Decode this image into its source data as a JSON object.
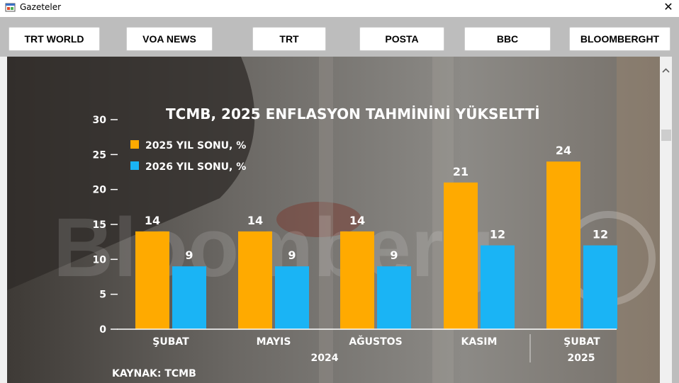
{
  "window": {
    "title": "Gazeteler",
    "close_glyph": "✕"
  },
  "toolbar": {
    "buttons": [
      {
        "label": "TRT WORLD"
      },
      {
        "label": "VOA NEWS"
      },
      {
        "label": "TRT"
      },
      {
        "label": "POSTA"
      },
      {
        "label": "BBC"
      },
      {
        "label": "BLOOMBERGHT"
      }
    ]
  },
  "image": {
    "watermark": "Bloomberg",
    "source": "KAYNAK: TCMB",
    "colors": {
      "series_2025": "#ffaa00",
      "series_2026": "#1ab4f5",
      "text": "#ffffff"
    }
  },
  "chart_data": {
    "type": "bar",
    "title": "TCMB, 2025 ENFLASYON TAHMİNİNİ YÜKSELTTİ",
    "categories": [
      "ŞUBAT",
      "MAYIS",
      "AĞUSTOS",
      "KASIM",
      "ŞUBAT"
    ],
    "group_labels": [
      "2024",
      "2025"
    ],
    "series": [
      {
        "name": "2025 YIL SONU, %",
        "values": [
          14,
          14,
          14,
          21,
          24
        ]
      },
      {
        "name": "2026 YIL SONU, %",
        "values": [
          9,
          9,
          9,
          12,
          12
        ]
      }
    ],
    "ylim": [
      0,
      30
    ],
    "yticks": [
      0,
      5,
      10,
      15,
      20,
      25,
      30
    ],
    "legend": "top-left",
    "grid": false
  }
}
